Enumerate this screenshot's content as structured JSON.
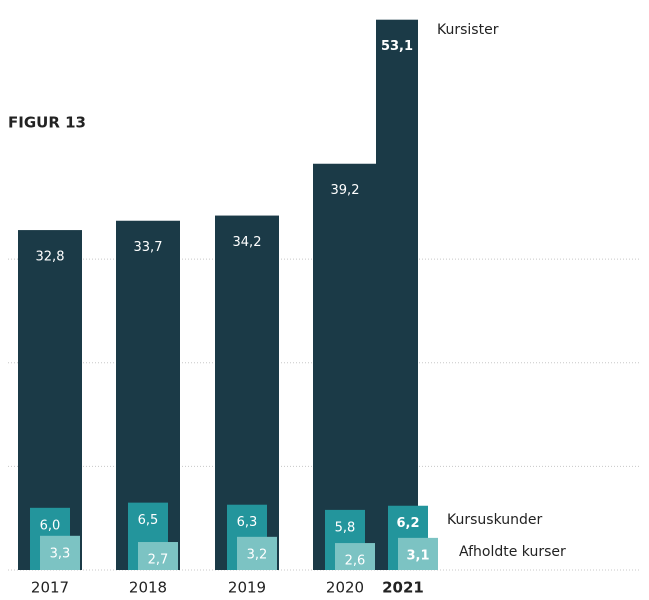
{
  "chart_data": {
    "type": "bar",
    "title": "FIGUR 13",
    "categories": [
      "2017",
      "2018",
      "2019",
      "2020",
      "2021"
    ],
    "series": [
      {
        "name": "Kursister",
        "color": "#1b3a47",
        "values": [
          32.8,
          33.7,
          34.2,
          39.2,
          53.1
        ],
        "value_labels": [
          "32,8",
          "33,7",
          "34,2",
          "39,2",
          "53,1"
        ]
      },
      {
        "name": "Kursuskunder",
        "color": "#23959c",
        "values": [
          6.0,
          6.5,
          6.3,
          5.8,
          6.2
        ],
        "value_labels": [
          "6,0",
          "6,5",
          "6,3",
          "5,8",
          "6,2"
        ]
      },
      {
        "name": "Afholdte kurser",
        "color": "#7cc3c3",
        "values": [
          3.3,
          2.7,
          3.2,
          2.6,
          3.1
        ],
        "value_labels": [
          "3,3",
          "2,7",
          "3,2",
          "2,6",
          "3,1"
        ]
      }
    ],
    "ylim": [
      0,
      55
    ],
    "yticks": [
      0,
      10,
      20,
      30
    ],
    "grid": true
  }
}
